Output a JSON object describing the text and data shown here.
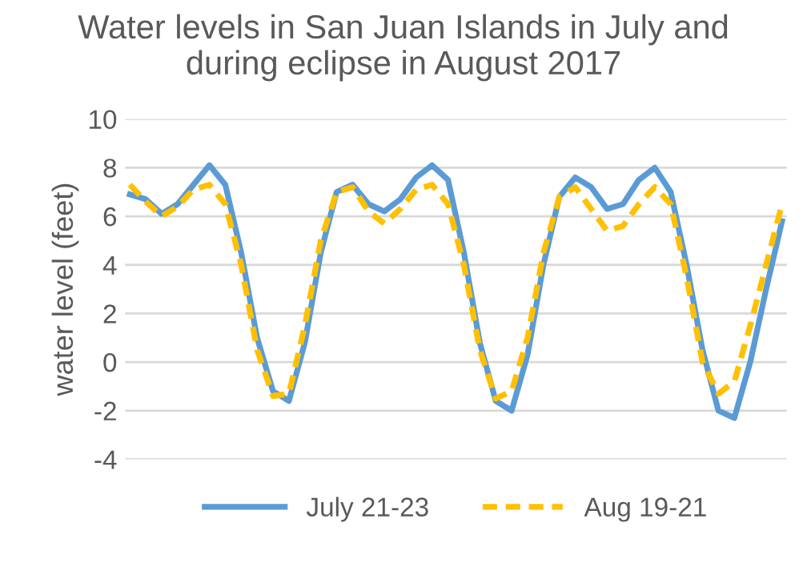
{
  "chart_data": {
    "type": "line",
    "title": "Water levels in San Juan Islands in July and\nduring eclipse in August 2017",
    "ylabel": "water level (feet)",
    "categories": [
      null,
      null,
      null,
      null,
      null,
      null,
      null,
      null,
      null,
      null,
      null,
      null,
      null,
      null,
      null,
      null,
      null,
      null,
      null,
      null,
      null,
      null,
      null,
      null,
      null,
      null,
      null,
      null,
      null,
      null,
      null,
      null,
      null,
      null,
      null,
      null,
      null,
      null,
      null,
      null,
      null,
      null
    ],
    "series": [
      {
        "name": "July 21-23",
        "color": "#5b9bd5",
        "line_style": "solid",
        "values": [
          6.9,
          6.7,
          6.1,
          6.5,
          7.3,
          8.1,
          7.3,
          4.5,
          1.0,
          -1.2,
          -1.6,
          0.8,
          4.5,
          7.0,
          7.3,
          6.5,
          6.2,
          6.7,
          7.6,
          8.1,
          7.5,
          4.5,
          0.8,
          -1.6,
          -2.0,
          0.3,
          4.0,
          6.8,
          7.6,
          7.2,
          6.3,
          6.5,
          7.5,
          8.0,
          7.0,
          4.0,
          0.5,
          -2.0,
          -2.3,
          0.0,
          3.0,
          5.8
        ]
      },
      {
        "name": "Aug 19-21",
        "color": "#ffc000",
        "line_style": "dashed",
        "values": [
          7.3,
          6.6,
          6.0,
          6.4,
          7.1,
          7.3,
          6.5,
          4.0,
          0.5,
          -1.4,
          -1.3,
          1.5,
          5.0,
          7.0,
          7.2,
          6.2,
          5.7,
          6.3,
          7.1,
          7.3,
          6.5,
          4.0,
          0.5,
          -1.5,
          -1.2,
          1.0,
          4.5,
          6.8,
          7.2,
          6.3,
          5.4,
          5.6,
          6.5,
          7.2,
          6.5,
          3.5,
          0.0,
          -1.3,
          -0.8,
          1.5,
          4.0,
          6.5
        ]
      }
    ],
    "ylim": [
      -4,
      10
    ],
    "yticks": [
      -4,
      -2,
      0,
      2,
      4,
      6,
      8,
      10
    ],
    "grid": "y",
    "legend": "bottom"
  }
}
